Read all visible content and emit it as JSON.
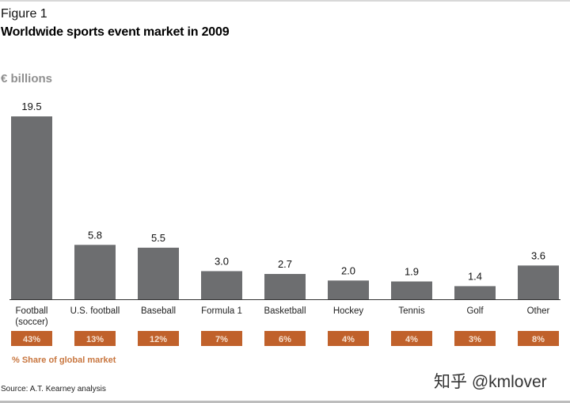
{
  "figure_label": "Figure 1",
  "chart_data": {
    "type": "bar",
    "title": "Worldwide sports event market in 2009",
    "ylabel": "€ billions",
    "xlabel": "",
    "categories": [
      "Football (soccer)",
      "U.S. football",
      "Baseball",
      "Formula 1",
      "Basketball",
      "Hockey",
      "Tennis",
      "Golf",
      "Other"
    ],
    "values": [
      19.5,
      5.8,
      5.5,
      3.0,
      2.7,
      2.0,
      1.9,
      1.4,
      3.6
    ],
    "value_labels": [
      "19.5",
      "5.8",
      "5.5",
      "3.0",
      "2.7",
      "2.0",
      "1.9",
      "1.4",
      "3.6"
    ],
    "share_labels": [
      "43%",
      "13%",
      "12%",
      "7%",
      "6%",
      "4%",
      "4%",
      "3%",
      "8%"
    ],
    "share_title": "% Share of global market",
    "ylim": [
      0,
      19.5
    ],
    "grid": false,
    "colors": {
      "bar": "#6d6e70",
      "share_box": "#c0612b",
      "share_text": "#c8763f",
      "axis": "#333333"
    }
  },
  "source": "Source: A.T. Kearney analysis",
  "watermark": "知乎 @kmlover"
}
